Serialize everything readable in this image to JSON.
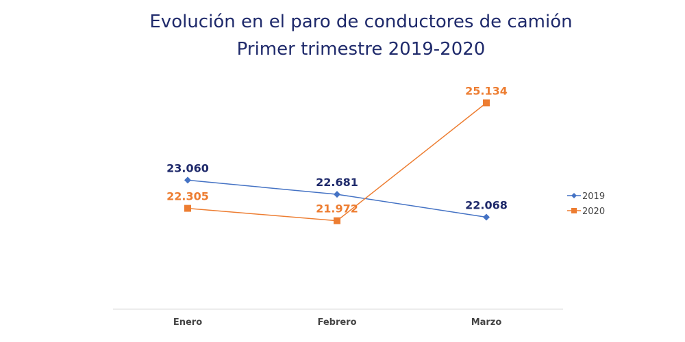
{
  "chart_data": {
    "type": "line",
    "title": "Evolución en el paro de conductores de camión",
    "subtitle": "Primer trimestre 2019-2020",
    "categories": [
      "Enero",
      "Febrero",
      "Marzo"
    ],
    "series": [
      {
        "name": "2019",
        "values": [
          23060,
          22681,
          22068
        ],
        "labels": [
          "23.060",
          "22.681",
          "22.068"
        ],
        "color": "#4472c4",
        "label_color": "#1f2a6b",
        "marker": "diamond"
      },
      {
        "name": "2020",
        "values": [
          22305,
          21972,
          25134
        ],
        "labels": [
          "22.305",
          "21.972",
          "25.134"
        ],
        "color": "#ed7d31",
        "label_color": "#ed7d31",
        "marker": "square"
      }
    ],
    "ylim": [
      19600,
      25600
    ],
    "grid": false,
    "legend": "right"
  }
}
